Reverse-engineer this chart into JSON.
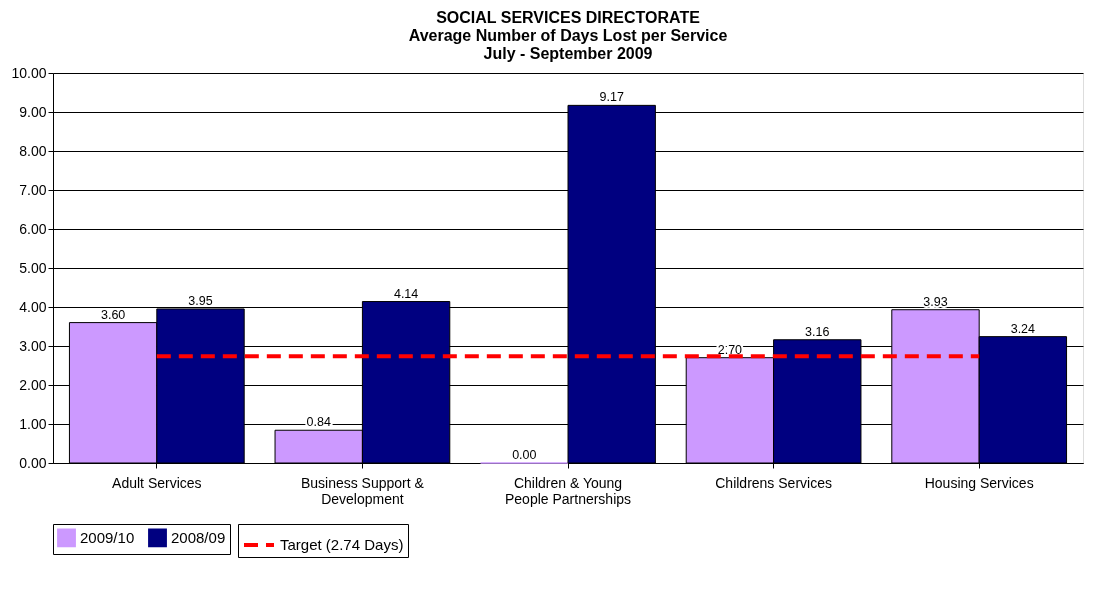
{
  "chart_data": {
    "type": "bar",
    "title": [
      "SOCIAL SERVICES DIRECTORATE",
      "Average Number of Days Lost per Service",
      "July - September 2009"
    ],
    "categories": [
      "Adult Services",
      "Business Support & Development",
      "Children & Young People Partnerships",
      "Childrens Services",
      "Housing Services"
    ],
    "series": [
      {
        "name": "2009/10",
        "color": "#cc99ff",
        "values": [
          3.6,
          0.84,
          0.0,
          2.7,
          3.93
        ],
        "value_labels": [
          "3.60",
          "0.84",
          "0.00",
          "2.70",
          "3.93"
        ]
      },
      {
        "name": "2008/09",
        "color": "#000080",
        "values": [
          3.95,
          4.14,
          9.17,
          3.16,
          3.24
        ],
        "value_labels": [
          "3.95",
          "4.14",
          "9.17",
          "3.16",
          "3.24"
        ]
      }
    ],
    "data_labels": true,
    "ylim": [
      0,
      10
    ],
    "yticks": [
      {
        "value": 0,
        "label": "0.00"
      },
      {
        "value": 1,
        "label": "1.00"
      },
      {
        "value": 2,
        "label": "2.00"
      },
      {
        "value": 3,
        "label": "3.00"
      },
      {
        "value": 4,
        "label": "4.00"
      },
      {
        "value": 5,
        "label": "5.00"
      },
      {
        "value": 6,
        "label": "6.00"
      },
      {
        "value": 7,
        "label": "7.00"
      },
      {
        "value": 8,
        "label": "8.00"
      },
      {
        "value": 9,
        "label": "9.00"
      },
      {
        "value": 10,
        "label": "10.00"
      }
    ],
    "ref_lines": [
      {
        "axis": "y",
        "value": 2.74,
        "label": "Target (2.74 Days)",
        "color": "#ff0000",
        "line_style": "dashed"
      }
    ],
    "grid": "y",
    "legend": "bottom"
  }
}
